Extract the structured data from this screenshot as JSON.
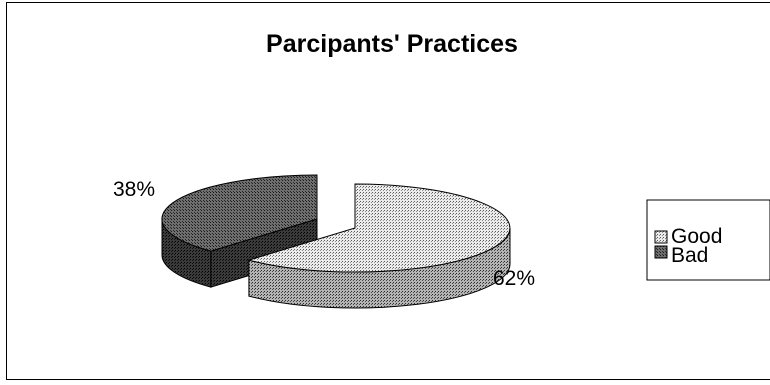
{
  "chart_data": {
    "type": "pie",
    "title": "Parcipants' Practices",
    "categories": [
      "Good",
      "Bad"
    ],
    "values": [
      62,
      38
    ],
    "value_labels": [
      "62%",
      "38%"
    ],
    "legend_position": "right",
    "style": "3d-exploded"
  },
  "colors": {
    "good_fill": "#dedede",
    "bad_fill": "#4a4a4a",
    "outline": "#000000"
  }
}
